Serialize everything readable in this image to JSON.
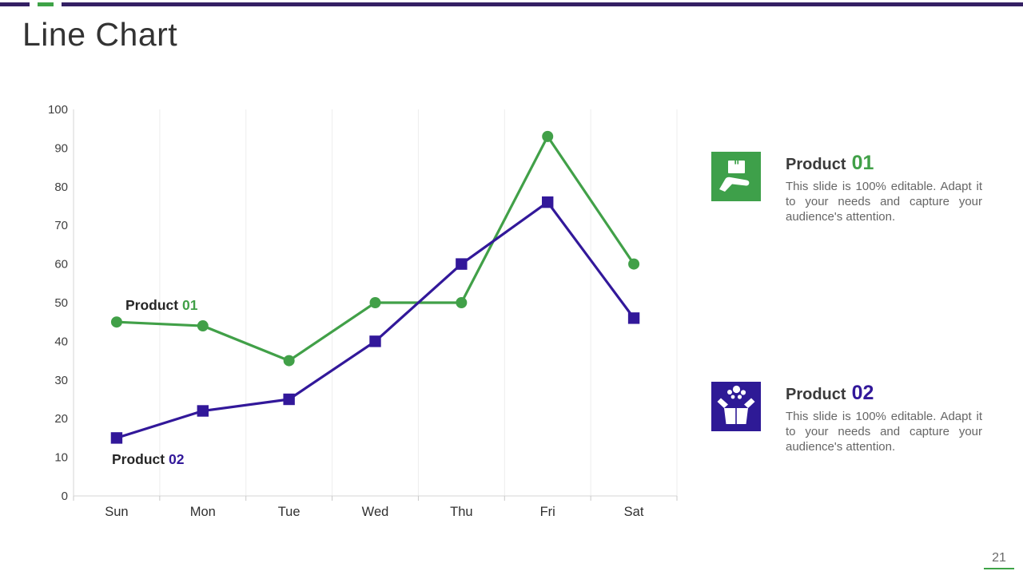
{
  "slide": {
    "title": "Line Chart",
    "page_number": "21",
    "accent": {
      "purple": "#342064",
      "green": "#3EA347"
    }
  },
  "chart_data": {
    "type": "line",
    "categories": [
      "Sun",
      "Mon",
      "Tue",
      "Wed",
      "Thu",
      "Fri",
      "Sat"
    ],
    "series": [
      {
        "name": "Product 01",
        "label_prefix": "Product",
        "label_number": "01",
        "color": "#41A048",
        "marker": "circle",
        "values": [
          45,
          44,
          35,
          50,
          50,
          93,
          60
        ]
      },
      {
        "name": "Product 02",
        "label_prefix": "Product",
        "label_number": "02",
        "color": "#32189A",
        "marker": "square",
        "values": [
          15,
          22,
          25,
          40,
          60,
          76,
          46
        ]
      }
    ],
    "title": "",
    "xlabel": "",
    "ylabel": "",
    "ylim": [
      0,
      100
    ],
    "ytick_step": 10,
    "grid": "vertical-light",
    "legend_position": "inline-labels-near-series"
  },
  "features": [
    {
      "title_prefix": "Product",
      "title_number": "01",
      "icon": "hand-holding-box-icon",
      "icon_bg": "#3EA04A",
      "description": "This slide is 100% editable. Adapt it to your needs and capture your audience's attention."
    },
    {
      "title_prefix": "Product",
      "title_number": "02",
      "icon": "open-box-icon",
      "icon_bg": "#2E1A96",
      "description": "This slide is 100% editable. Adapt it to your needs and capture your audience's attention."
    }
  ]
}
